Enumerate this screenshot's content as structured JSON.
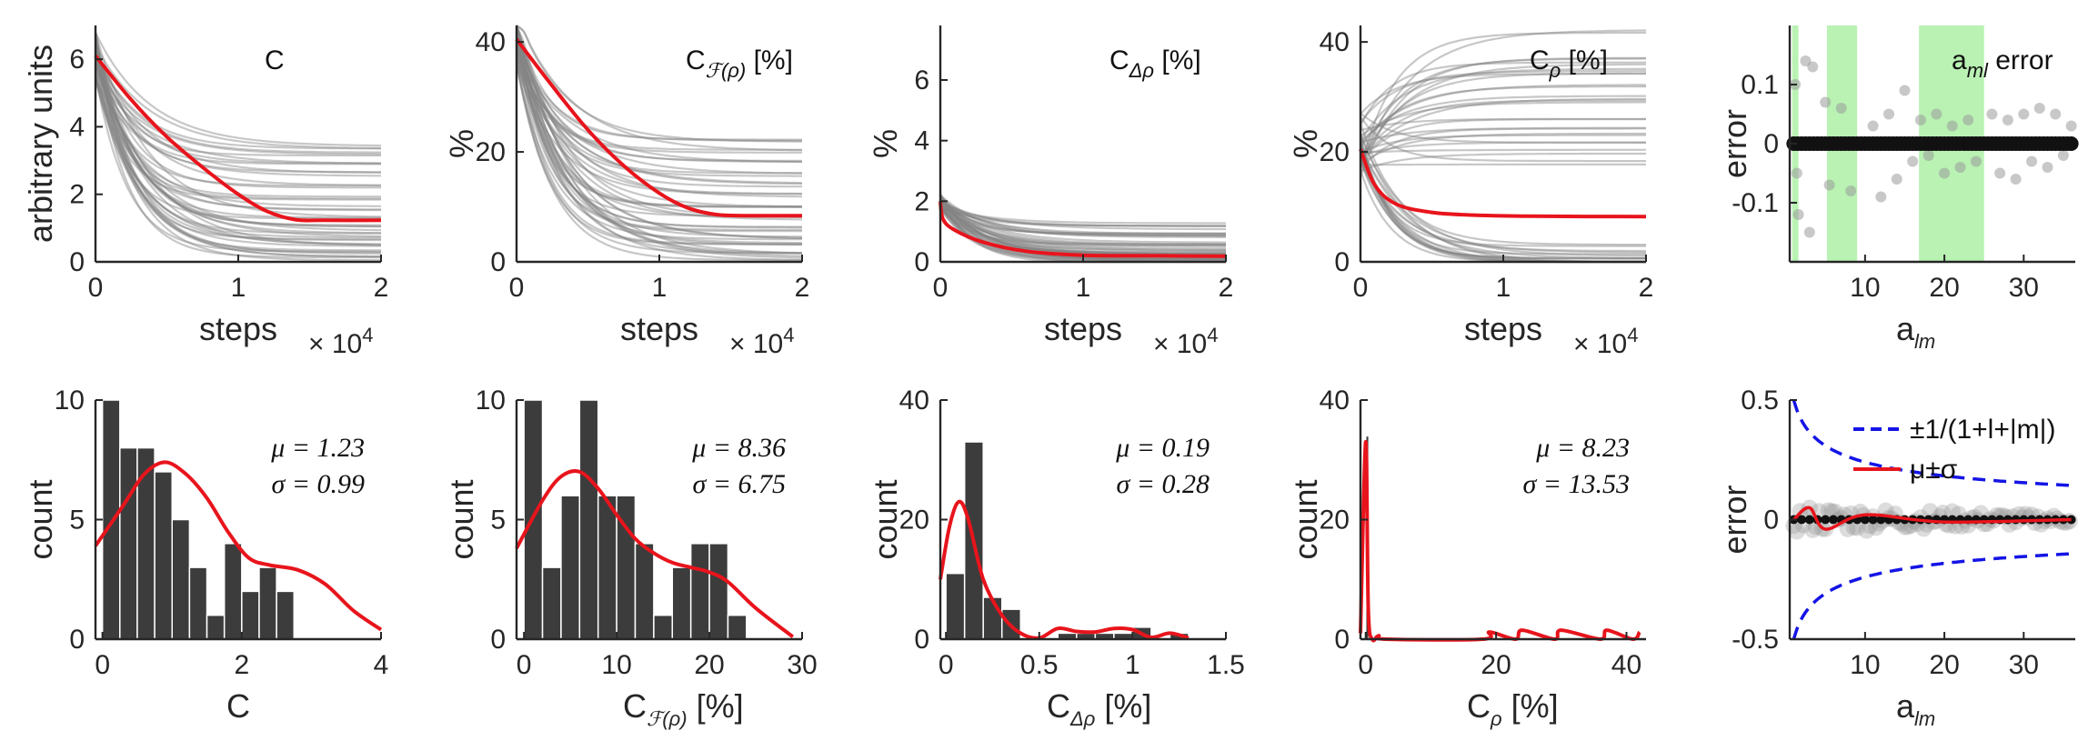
{
  "colors": {
    "red": "#e8141c",
    "dark": "#3c3c3c",
    "trace": "#1e1e1e",
    "green": "#b9f2b3",
    "blue": "#1414e6",
    "grey": "#9a9a9a"
  },
  "chart_data": [
    {
      "type": "line",
      "panel": "C",
      "title": "C",
      "ylabel": "arbitrary units",
      "xlabel": "steps",
      "x_multiplier": "× 10",
      "x_exponent": "4",
      "xlim": [
        0,
        2
      ],
      "ylim": [
        0,
        7
      ],
      "xticks": [
        "0",
        "1",
        "2"
      ],
      "yticks": [
        "0",
        "2",
        "4",
        "6"
      ],
      "series": [
        {
          "name": "mean",
          "color": "red",
          "x": [
            0,
            0.25,
            0.5,
            0.75,
            1.0,
            1.2,
            1.4,
            1.6,
            2.0
          ],
          "values": [
            6.1,
            4.8,
            3.7,
            2.8,
            2.0,
            1.5,
            1.25,
            1.23,
            1.23
          ]
        }
      ],
      "trace_finals": [
        0.1,
        0.3,
        0.5,
        0.7,
        0.9,
        1.1,
        1.3,
        1.6,
        1.9,
        2.2,
        2.6,
        2.9,
        3.2,
        3.4
      ]
    },
    {
      "type": "line",
      "panel": "Cf",
      "title": "C",
      "title_sub": "ℱ(ρ)",
      "title_suffix": "[%]",
      "ylabel": "%",
      "xlabel": "steps",
      "x_multiplier": "× 10",
      "x_exponent": "4",
      "xlim": [
        0,
        2
      ],
      "ylim": [
        0,
        43
      ],
      "xticks": [
        "0",
        "1",
        "2"
      ],
      "yticks": [
        "0",
        "20",
        "40"
      ],
      "series": [
        {
          "name": "mean",
          "color": "red",
          "x": [
            0,
            0.25,
            0.5,
            0.75,
            1.0,
            1.2,
            1.4,
            1.6,
            2.0
          ],
          "values": [
            40.5,
            32,
            24,
            17.5,
            12.5,
            9.8,
            8.6,
            8.4,
            8.4
          ]
        }
      ],
      "trace_finals": [
        0.5,
        1.5,
        3,
        4.5,
        6,
        8,
        10,
        12,
        14,
        16,
        18,
        20,
        22
      ]
    },
    {
      "type": "line",
      "panel": "Cdr",
      "title": "C",
      "title_sub": "Δρ",
      "title_suffix": "[%]",
      "ylabel": "%",
      "xlabel": "steps",
      "x_multiplier": "× 10",
      "x_exponent": "4",
      "xlim": [
        0,
        2
      ],
      "ylim": [
        0,
        7.8
      ],
      "xticks": [
        "0",
        "1",
        "2"
      ],
      "yticks": [
        "0",
        "2",
        "4",
        "6"
      ],
      "series": [
        {
          "name": "mean",
          "color": "red",
          "x": [
            0,
            0.02,
            0.1,
            0.3,
            0.6,
            1.0,
            1.5,
            2.0
          ],
          "values": [
            2.0,
            1.4,
            1.05,
            0.65,
            0.35,
            0.22,
            0.2,
            0.19
          ]
        }
      ],
      "trace_finals": [
        0.0,
        0.1,
        0.15,
        0.2,
        0.3,
        0.45,
        0.6,
        0.8,
        1.0,
        1.2
      ]
    },
    {
      "type": "line",
      "panel": "Cr",
      "title": "C",
      "title_sub": "ρ",
      "title_suffix": "[%]",
      "ylabel": "%",
      "xlabel": "steps",
      "x_multiplier": "× 10",
      "x_exponent": "4",
      "xlim": [
        0,
        2
      ],
      "ylim": [
        0,
        43
      ],
      "xticks": [
        "0",
        "1",
        "2"
      ],
      "yticks": [
        "0",
        "20",
        "40"
      ],
      "series": [
        {
          "name": "mean",
          "color": "red",
          "x": [
            0,
            0.1,
            0.25,
            0.5,
            0.8,
            1.2,
            2.0
          ],
          "values": [
            20.5,
            14,
            10.5,
            9.0,
            8.5,
            8.3,
            8.23
          ]
        }
      ],
      "trace_finals": [
        0,
        0,
        0.2,
        0.4,
        0.8,
        1.2,
        2,
        3,
        18,
        20,
        22,
        23,
        24,
        26,
        29,
        30,
        32,
        34,
        35,
        36,
        37,
        42
      ]
    },
    {
      "type": "scatter",
      "panel": "alm",
      "title": "a",
      "title_sub": "ml",
      "title_suffix": "error",
      "ylabel": "error",
      "xlabel": "a",
      "xlabel_sub": "lm",
      "xlim": [
        0.5,
        36.5
      ],
      "ylim": [
        -0.2,
        0.2
      ],
      "xticks": [
        "10",
        "20",
        "30"
      ],
      "yticks": [
        "-0.1",
        "0",
        "0.1"
      ],
      "shaded_x": [
        [
          0.8,
          1.6
        ],
        [
          5.2,
          9.0
        ],
        [
          16.8,
          25.0
        ]
      ],
      "points": [
        [
          1.2,
          0.1
        ],
        [
          1.4,
          -0.05
        ],
        [
          1.6,
          -0.12
        ],
        [
          2.5,
          0.14
        ],
        [
          3.0,
          -0.15
        ],
        [
          3.4,
          0.13
        ],
        [
          5.0,
          0.07
        ],
        [
          5.5,
          -0.07
        ],
        [
          7,
          0.06
        ],
        [
          8.2,
          -0.08
        ],
        [
          11,
          0.03
        ],
        [
          12,
          -0.09
        ],
        [
          13,
          0.05
        ],
        [
          14,
          -0.06
        ],
        [
          15,
          0.09
        ],
        [
          16,
          -0.03
        ],
        [
          17,
          0.04
        ],
        [
          18,
          -0.02
        ],
        [
          19,
          0.05
        ],
        [
          20,
          -0.05
        ],
        [
          21,
          0.03
        ],
        [
          22,
          -0.04
        ],
        [
          23,
          0.04
        ],
        [
          24,
          -0.03
        ],
        [
          26,
          0.05
        ],
        [
          27,
          -0.05
        ],
        [
          28,
          0.04
        ],
        [
          29,
          -0.06
        ],
        [
          30,
          0.05
        ],
        [
          31,
          -0.03
        ],
        [
          32,
          0.06
        ],
        [
          33,
          -0.04
        ],
        [
          34,
          0.05
        ],
        [
          35,
          -0.02
        ],
        [
          36,
          0.03
        ]
      ]
    },
    {
      "type": "bar",
      "panel": "C",
      "ylabel": "count",
      "xlabel": "C",
      "xlim": [
        -0.1,
        4
      ],
      "ylim": [
        0,
        10
      ],
      "xticks": [
        "0",
        "2",
        "4"
      ],
      "yticks": [
        "0",
        "5",
        "10"
      ],
      "bin_width": 0.25,
      "bin_start": 0,
      "values": [
        10,
        8,
        8,
        7,
        5,
        3,
        1,
        4,
        2,
        3,
        2
      ],
      "kde": {
        "x": [
          -0.1,
          0.3,
          0.6,
          0.9,
          1.2,
          1.5,
          1.8,
          2.1,
          2.4,
          2.8,
          3.2,
          3.6,
          4.0
        ],
        "values": [
          3.9,
          5.6,
          6.9,
          7.4,
          6.9,
          5.9,
          4.5,
          3.4,
          3.1,
          2.9,
          2.3,
          1.2,
          0.4
        ]
      },
      "stats": {
        "mu_label": "μ = 1.23",
        "sigma_label": "σ = 0.99"
      }
    },
    {
      "type": "bar",
      "panel": "Cf",
      "ylabel": "count",
      "xlabel": "C",
      "xlabel_sub": "ℱ(ρ)",
      "xlabel_suffix": "[%]",
      "xlim": [
        -0.8,
        30
      ],
      "ylim": [
        0,
        10
      ],
      "xticks": [
        "0",
        "10",
        "20",
        "30"
      ],
      "yticks": [
        "0",
        "5",
        "10"
      ],
      "bin_width": 2,
      "bin_start": 0,
      "values": [
        10,
        3,
        6,
        10,
        6,
        6,
        4,
        1,
        3,
        4,
        4,
        1
      ],
      "kde": {
        "x": [
          -0.8,
          2,
          4,
          6,
          8,
          10,
          12,
          14,
          16,
          18,
          20,
          22,
          25,
          29
        ],
        "values": [
          3.8,
          5.8,
          6.8,
          7.0,
          6.3,
          5.2,
          4.2,
          3.6,
          3.2,
          3.0,
          2.8,
          2.4,
          1.3,
          0.1
        ]
      },
      "stats": {
        "mu_label": "μ = 8.36",
        "sigma_label": "σ = 6.75"
      }
    },
    {
      "type": "bar",
      "panel": "Cdr",
      "ylabel": "count",
      "xlabel": "C",
      "xlabel_sub": "Δρ",
      "xlabel_suffix": "[%]",
      "xlim": [
        -0.03,
        1.5
      ],
      "ylim": [
        0,
        40
      ],
      "xticks": [
        "0",
        "0.5",
        "1",
        "1.5"
      ],
      "yticks": [
        "0",
        "20",
        "40"
      ],
      "bin_width": 0.1,
      "bin_start": 0,
      "values": [
        11,
        33,
        7,
        5,
        0,
        0,
        1,
        1,
        1,
        1,
        2,
        0,
        1
      ],
      "kde": {
        "x": [
          -0.03,
          0.02,
          0.07,
          0.12,
          0.2,
          0.3,
          0.4,
          0.5,
          0.6,
          0.7,
          0.8,
          0.9,
          1.0,
          1.1,
          1.2,
          1.3
        ],
        "values": [
          10,
          19,
          23,
          20,
          10,
          4,
          1,
          0.2,
          1.8,
          1.3,
          1.2,
          1.8,
          1.6,
          0.3,
          1.0,
          0.2
        ]
      },
      "stats": {
        "mu_label": "μ = 0.19",
        "sigma_label": "σ = 0.28"
      }
    },
    {
      "type": "bar",
      "panel": "Cr",
      "ylabel": "count",
      "xlabel": "C",
      "xlabel_sub": "ρ",
      "xlabel_suffix": "[%]",
      "xlim": [
        -0.8,
        43
      ],
      "ylim": [
        0,
        40
      ],
      "xticks": [
        "0",
        "20",
        "40"
      ],
      "yticks": [
        "0",
        "20",
        "40"
      ],
      "bin_width": 0.5,
      "bin_start": 0,
      "values": [
        34
      ],
      "kde": {
        "x": [
          -0.8,
          0,
          0.4,
          1.0,
          2,
          3,
          18,
          19,
          23,
          24,
          29,
          30,
          36,
          37,
          41,
          42
        ],
        "values": [
          1,
          33,
          5,
          0,
          0.6,
          0,
          0,
          1.2,
          0,
          1.5,
          0,
          1.5,
          0,
          1.5,
          0,
          1.2
        ]
      },
      "stats": {
        "mu_label": "μ = 8.23",
        "sigma_label": "σ = 13.53"
      }
    },
    {
      "type": "scatter",
      "panel": "alm-err",
      "ylabel": "error",
      "xlabel": "a",
      "xlabel_sub": "lm",
      "xlim": [
        0.5,
        36.5
      ],
      "ylim": [
        -0.5,
        0.5
      ],
      "xticks": [
        "10",
        "20",
        "30"
      ],
      "yticks": [
        "-0.5",
        "0",
        "0.5"
      ],
      "legend": [
        {
          "label": "±1/(1+l+|m|)",
          "style": "dashed",
          "color": "blue"
        },
        {
          "label": "μ±σ",
          "style": "solid",
          "color": "red"
        }
      ]
    }
  ]
}
